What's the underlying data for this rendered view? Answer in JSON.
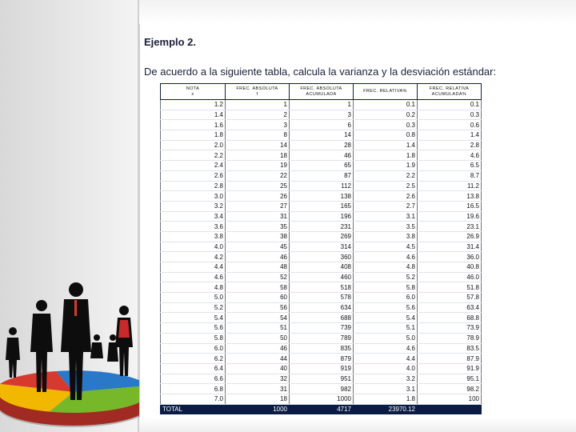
{
  "heading": "Ejemplo 2.",
  "instruction": "De acuerdo a la siguiente tabla, calcula la varianza y la desviación estándar:",
  "table": {
    "headers": [
      {
        "line1": "NOTA",
        "line2": "x"
      },
      {
        "line1": "FREC. ABSOLUTA",
        "line2": "f"
      },
      {
        "line1": "FREC. ABSOLUTA",
        "line2": "ACUMULADA"
      },
      {
        "line1": "FREC. RELATIVA%",
        "line2": ""
      },
      {
        "line1": "FREC. RELATIVA",
        "line2": "ACUMULADA%"
      }
    ],
    "rows": [
      [
        "1.2",
        "1",
        "1",
        "0.1",
        "0.1"
      ],
      [
        "1.4",
        "2",
        "3",
        "0.2",
        "0.3"
      ],
      [
        "1.6",
        "3",
        "6",
        "0.3",
        "0.6"
      ],
      [
        "1.8",
        "8",
        "14",
        "0.8",
        "1.4"
      ],
      [
        "2.0",
        "14",
        "28",
        "1.4",
        "2.8"
      ],
      [
        "2.2",
        "18",
        "46",
        "1.8",
        "4.6"
      ],
      [
        "2.4",
        "19",
        "65",
        "1.9",
        "6.5"
      ],
      [
        "2.6",
        "22",
        "87",
        "2.2",
        "8.7"
      ],
      [
        "2.8",
        "25",
        "112",
        "2.5",
        "11.2"
      ],
      [
        "3.0",
        "26",
        "138",
        "2.6",
        "13.8"
      ],
      [
        "3.2",
        "27",
        "165",
        "2.7",
        "16.5"
      ],
      [
        "3.4",
        "31",
        "196",
        "3.1",
        "19.6"
      ],
      [
        "3.6",
        "35",
        "231",
        "3.5",
        "23.1"
      ],
      [
        "3.8",
        "38",
        "269",
        "3.8",
        "26.9"
      ],
      [
        "4.0",
        "45",
        "314",
        "4.5",
        "31.4"
      ],
      [
        "4.2",
        "46",
        "360",
        "4.6",
        "36.0"
      ],
      [
        "4.4",
        "48",
        "408",
        "4.8",
        "40.8"
      ],
      [
        "4.6",
        "52",
        "460",
        "5.2",
        "46.0"
      ],
      [
        "4.8",
        "58",
        "518",
        "5.8",
        "51.8"
      ],
      [
        "5.0",
        "60",
        "578",
        "6.0",
        "57.8"
      ],
      [
        "5.2",
        "56",
        "634",
        "5.6",
        "63.4"
      ],
      [
        "5.4",
        "54",
        "688",
        "5.4",
        "68.8"
      ],
      [
        "5.6",
        "51",
        "739",
        "5.1",
        "73.9"
      ],
      [
        "5.8",
        "50",
        "789",
        "5.0",
        "78.9"
      ],
      [
        "6.0",
        "46",
        "835",
        "4.6",
        "83.5"
      ],
      [
        "6.2",
        "44",
        "879",
        "4.4",
        "87.9"
      ],
      [
        "6.4",
        "40",
        "919",
        "4.0",
        "91.9"
      ],
      [
        "6.6",
        "32",
        "951",
        "3.2",
        "95.1"
      ],
      [
        "6.8",
        "31",
        "982",
        "3.1",
        "98.2"
      ],
      [
        "7.0",
        "18",
        "1000",
        "1.8",
        "100"
      ]
    ],
    "total": [
      "TOTAL",
      "1000",
      "4717",
      "23970.12",
      ""
    ]
  }
}
